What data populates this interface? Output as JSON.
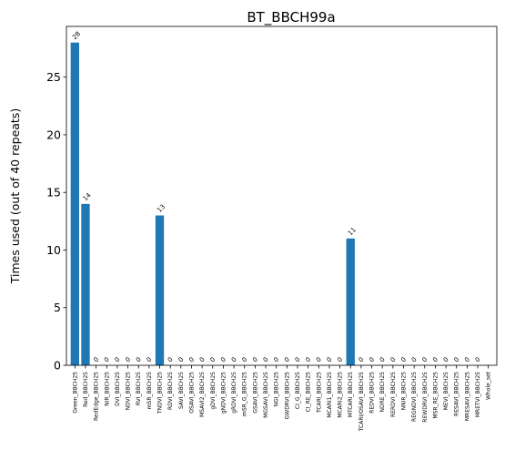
{
  "chart_data": {
    "type": "bar",
    "title": "BT_BBCH99a",
    "xlabel": "",
    "ylabel": "Times used (out of 40 repeats)",
    "ylim": [
      0,
      29.4
    ],
    "yticks": [
      0,
      5,
      10,
      15,
      20,
      25
    ],
    "grid": false,
    "bar_color": "#1f77b4",
    "categories": [
      "Green_BBCH25",
      "Red_BBCH25",
      "RedEdge_BBCH25",
      "NIR_BBCH25",
      "DVI_BBCH25",
      "NDVI_BBCH25",
      "RVI_BBCH25",
      "mSR_BBCH25",
      "TNDVI_BBCH25",
      "RDVI_BBCH25",
      "SAVI_BBCH25",
      "OSAVI_BBCH25",
      "MSAVI2_BBCH25",
      "gDVI_BBCH25",
      "gNDVI_BBCH25",
      "gRDVI_BBCH25",
      "mSR_G_BBCH25",
      "GSAVI_BBCH25",
      "MGSAVI_BBCH25",
      "NGI_BBCH25",
      "GWDRVI_BBCH25",
      "CI_G_BBCH25",
      "CI_RE_BBCH25",
      "TCARI_BBCH25",
      "MCARI1_BBCH25",
      "MCARI2_BBCH25",
      "MTCARI_BBCH25",
      "TCARI/OSAVI_BBCH25",
      "REDVI_BBCH25",
      "NDRE_BBCH25",
      "RERDVI_BBCH25",
      "NNIR_BBCH25",
      "REGNDVI_BBCH25",
      "REWDRVI_BBCH25",
      "MSR_RE_BBCH25",
      "MEVI_BBCH25",
      "RESAVI_BBCH25",
      "MRESAVI_BBCH25",
      "MRETVI_BBCH25",
      "Whole_set"
    ],
    "values": [
      28,
      14,
      0,
      0,
      0,
      0,
      0,
      0,
      13,
      0,
      0,
      0,
      0,
      0,
      0,
      0,
      0,
      0,
      0,
      0,
      0,
      0,
      0,
      0,
      0,
      0,
      11,
      0,
      0,
      0,
      0,
      0,
      0,
      0,
      0,
      0,
      0,
      0,
      0,
      null
    ],
    "value_labels": [
      "28",
      "14",
      "0",
      "0",
      "0",
      "0",
      "0",
      "0",
      "13",
      "0",
      "0",
      "0",
      "0",
      "0",
      "0",
      "0",
      "0",
      "0",
      "0",
      "0",
      "0",
      "0",
      "0",
      "0",
      "0",
      "0",
      "11",
      "0",
      "0",
      "0",
      "0",
      "0",
      "0",
      "0",
      "0",
      "0",
      "0",
      "0",
      "0",
      ""
    ]
  }
}
